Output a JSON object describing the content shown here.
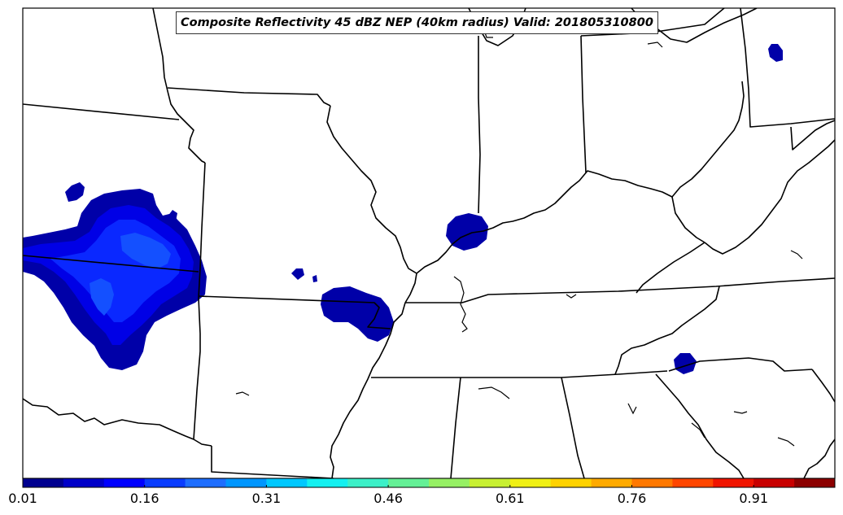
{
  "title": "Composite Reflectivity 45 dBZ NEP (40km radius) Valid: 201805310800",
  "colorbar": {
    "tick_labels": [
      "0.01",
      "0.16",
      "0.31",
      "0.46",
      "0.61",
      "0.76",
      "0.91"
    ],
    "colors": [
      "#00008f",
      "#0000c8",
      "#0000ff",
      "#0a3cff",
      "#1e6eff",
      "#0096ff",
      "#00c8ff",
      "#14f0f0",
      "#3cf0c8",
      "#64f096",
      "#96f064",
      "#c8f032",
      "#f0f014",
      "#ffd200",
      "#ffaa00",
      "#ff7800",
      "#ff4600",
      "#f01400",
      "#c80000",
      "#8c0000"
    ]
  },
  "colors": {
    "prob_level_1": "#0000a8",
    "prob_level_2": "#0000e6",
    "prob_level_3": "#0a28ff",
    "prob_level_4": "#1450ff",
    "boundary": "#000000"
  }
}
